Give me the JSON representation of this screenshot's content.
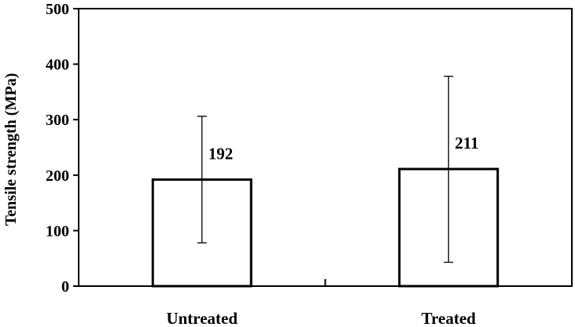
{
  "chart_data": {
    "type": "bar",
    "ylabel": "Tensile strength (MPa)",
    "xlabel": "",
    "ylim": [
      0,
      500
    ],
    "yticks": [
      0,
      100,
      200,
      300,
      400,
      500
    ],
    "grid": false,
    "categories": [
      "Untreated",
      "Treated"
    ],
    "values": [
      192,
      211
    ],
    "data_labels": [
      "192",
      "211"
    ],
    "error_bars": [
      {
        "low": 78,
        "high": 306
      },
      {
        "low": 43,
        "high": 378
      }
    ],
    "colors": {
      "bar_fill": "#ffffff",
      "bar_stroke": "#000000",
      "axis": "#000000"
    }
  }
}
